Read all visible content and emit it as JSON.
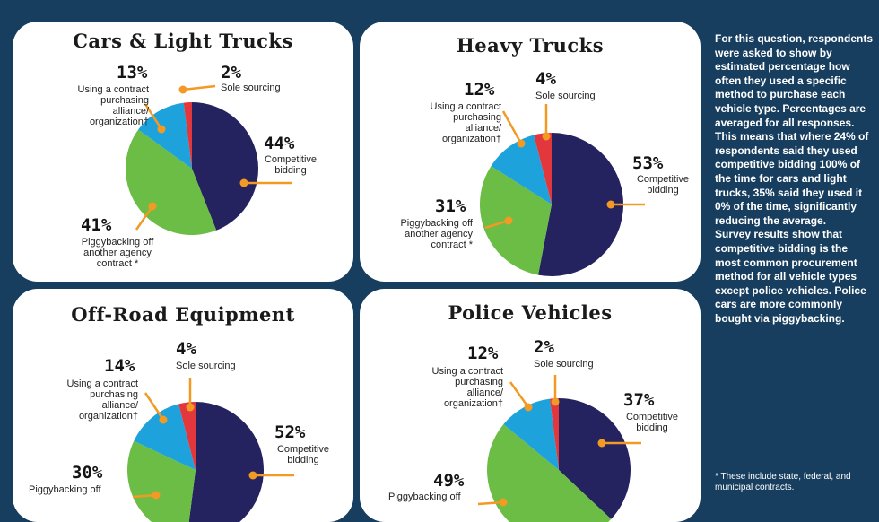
{
  "colors": {
    "competitive": "#25235f",
    "piggyback": "#6cbd45",
    "contract": "#1da2dc",
    "sole": "#e2383d",
    "leader": "#f29a24",
    "background": "#173e5f"
  },
  "chart_data": [
    {
      "type": "pie",
      "title": "Cars & Light Trucks",
      "categories": [
        "Competitive bidding",
        "Piggybacking off another agency contract *",
        "Using a contract purchasing alliance/ organization†",
        "Sole sourcing"
      ],
      "values": [
        44,
        41,
        13,
        2
      ],
      "labels": {
        "competitive": {
          "pct": "44%",
          "lines": [
            "Competitive",
            "bidding"
          ]
        },
        "piggyback": {
          "pct": "41%",
          "lines": [
            "Piggybacking off",
            "another agency",
            "contract *"
          ]
        },
        "contract": {
          "pct": "13%",
          "lines": [
            "Using a contract",
            "purchasing",
            "alliance/",
            "organization†"
          ]
        },
        "sole": {
          "pct": "2%",
          "lines": [
            "Sole sourcing"
          ]
        }
      }
    },
    {
      "type": "pie",
      "title": "Heavy Trucks",
      "categories": [
        "Competitive bidding",
        "Piggybacking off another agency contract *",
        "Using a contract purchasing alliance/ organization†",
        "Sole sourcing"
      ],
      "values": [
        53,
        31,
        12,
        4
      ],
      "labels": {
        "competitive": {
          "pct": "53%",
          "lines": [
            "Competitive",
            "bidding"
          ]
        },
        "piggyback": {
          "pct": "31%",
          "lines": [
            "Piggybacking off",
            "another agency",
            "contract *"
          ]
        },
        "contract": {
          "pct": "12%",
          "lines": [
            "Using a contract",
            "purchasing",
            "alliance/",
            "organization†"
          ]
        },
        "sole": {
          "pct": "4%",
          "lines": [
            "Sole sourcing"
          ]
        }
      }
    },
    {
      "type": "pie",
      "title": "Off-Road Equipment",
      "categories": [
        "Competitive bidding",
        "Piggybacking off another agency contract *",
        "Using a contract purchasing alliance/ organization†",
        "Sole sourcing"
      ],
      "values": [
        52,
        30,
        14,
        4
      ],
      "labels": {
        "competitive": {
          "pct": "52%",
          "lines": [
            "Competitive",
            "bidding"
          ]
        },
        "piggyback": {
          "pct": "30%",
          "lines": [
            "Piggybacking off"
          ]
        },
        "contract": {
          "pct": "14%",
          "lines": [
            "Using a contract",
            "purchasing",
            "alliance/",
            "organization†"
          ]
        },
        "sole": {
          "pct": "4%",
          "lines": [
            "Sole sourcing"
          ]
        }
      }
    },
    {
      "type": "pie",
      "title": "Police Vehicles",
      "categories": [
        "Competitive bidding",
        "Piggybacking off another agency contract *",
        "Using a contract purchasing alliance/ organization†",
        "Sole sourcing"
      ],
      "values": [
        37,
        49,
        12,
        2
      ],
      "labels": {
        "competitive": {
          "pct": "37%",
          "lines": [
            "Competitive",
            "bidding"
          ]
        },
        "piggyback": {
          "pct": "49%",
          "lines": [
            "Piggybacking off"
          ]
        },
        "contract": {
          "pct": "12%",
          "lines": [
            "Using a contract",
            "purchasing",
            "alliance/",
            "organization†"
          ]
        },
        "sole": {
          "pct": "2%",
          "lines": [
            "Sole sourcing"
          ]
        }
      }
    }
  ],
  "sidebar": {
    "paragraph1": "For this question, respondents were asked to show by estimated percentage how often they used a specific method to purchase each vehicle type. Percentages are averaged for all responses. This means that where 24% of respondents said they used competitive bidding 100% of the time for cars and light trucks, 35% said they used it 0% of the time, significantly reducing the average.",
    "paragraph2": "Survey results show that competitive bidding is the most common procurement method for all vehicle types except police vehicles. Police cars are more commonly bought via piggybacking.",
    "footnote": "* These include state, federal, and municipal contracts."
  }
}
